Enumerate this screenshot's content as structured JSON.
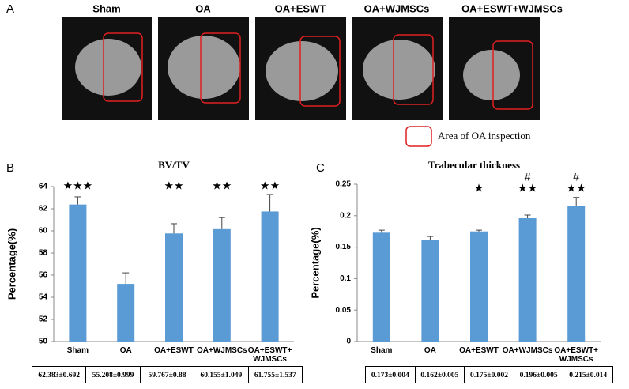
{
  "panel_a": {
    "letter": "A",
    "labels": [
      "Sham",
      "OA",
      "OA+ESWT",
      "OA+WJMSCs",
      "OA+ESWT+WJMSCs"
    ],
    "legend": "Area of OA inspection"
  },
  "chart_data": [
    {
      "type": "bar",
      "letter": "B",
      "title": "BV/TV",
      "y_label": "Percentage(%)",
      "categories": [
        "Sham",
        "OA",
        "OA+ESWT",
        "OA+WJMSCs",
        "OA+ESWT+ WJMSCs"
      ],
      "series": [
        {
          "color": "#5b9bd5",
          "values": [
            62.383,
            55.208,
            59.767,
            60.155,
            61.755
          ],
          "errors": [
            0.692,
            0.999,
            0.88,
            1.049,
            1.537
          ],
          "value_labels": [
            "62.383±0.692",
            "55.208±0.999",
            "59.767±0.88",
            "60.155±1.049",
            "61.755±1.537"
          ]
        }
      ],
      "annotations_top": [
        null,
        null,
        null,
        null,
        null
      ],
      "annotations": [
        "★★★",
        null,
        "★★",
        "★★",
        "★★"
      ],
      "ylim": [
        50,
        64
      ],
      "yticks": [
        50,
        52,
        54,
        56,
        58,
        60,
        62,
        64
      ]
    },
    {
      "type": "bar",
      "letter": "C",
      "title": "Trabecular thickness",
      "y_label": "Percentage(%)",
      "categories": [
        "Sham",
        "OA",
        "OA+ESWT",
        "OA+WJMSCs",
        "OA+ESWT+ WJMSCs"
      ],
      "series": [
        {
          "color": "#5b9bd5",
          "values": [
            0.173,
            0.162,
            0.175,
            0.196,
            0.215
          ],
          "errors": [
            0.004,
            0.005,
            0.002,
            0.005,
            0.014
          ],
          "value_labels": [
            "0.173±0.004",
            "0.162±0.005",
            "0.175±0.002",
            "0.196±0.005",
            "0.215±0.014"
          ]
        }
      ],
      "annotations_top": [
        null,
        null,
        null,
        "#",
        "#"
      ],
      "annotations": [
        null,
        null,
        "★",
        "★★",
        "★★"
      ],
      "ylim": [
        0,
        0.25
      ],
      "yticks": [
        0,
        0.05,
        0.1,
        0.15,
        0.2,
        0.25
      ]
    }
  ]
}
